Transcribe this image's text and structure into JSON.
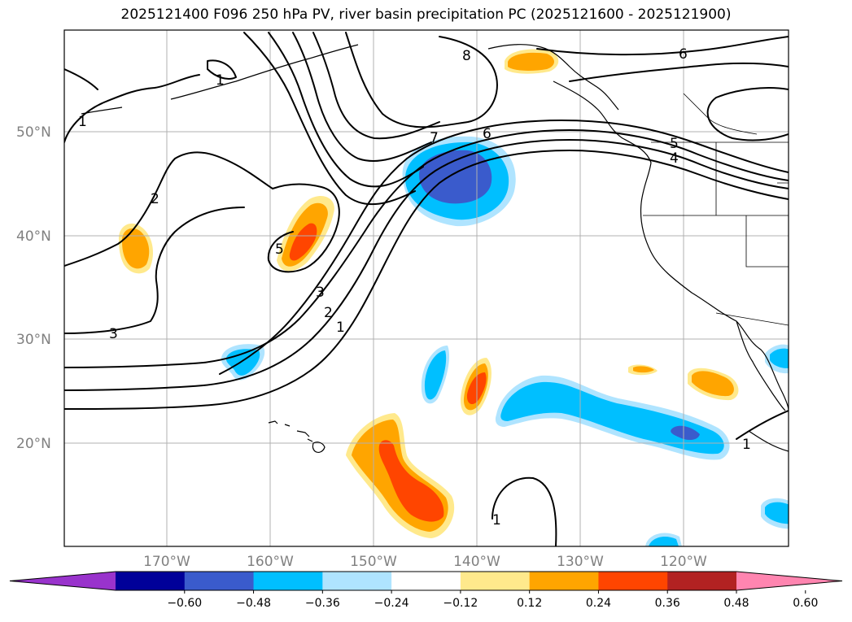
{
  "title": "2025121400 F096 250 hPa PV, river basin precipitation PC (2025121600 - 2025121900)",
  "lat_labels": [
    "50°N",
    "40°N",
    "30°N",
    "20°N"
  ],
  "lon_labels": [
    "170°W",
    "160°W",
    "150°W",
    "140°W",
    "130°W",
    "120°W"
  ],
  "contour_labels": [
    "1",
    "1",
    "2",
    "3",
    "5",
    "7",
    "6",
    "8",
    "6",
    "5",
    "4",
    "3",
    "2",
    "1",
    "1",
    "1"
  ],
  "colorbar": {
    "colors": [
      "#9933cc",
      "#000099",
      "#3a5bcc",
      "#00bfff",
      "#afe4ff",
      "#ffffff",
      "#ffe98c",
      "#ffa500",
      "#ff4500",
      "#b22222",
      "#ff85b0"
    ],
    "tick_labels": [
      "−0.60",
      "−0.48",
      "−0.36",
      "−0.24",
      "−0.12",
      "0.12",
      "0.24",
      "0.36",
      "0.48",
      "0.60"
    ]
  }
}
